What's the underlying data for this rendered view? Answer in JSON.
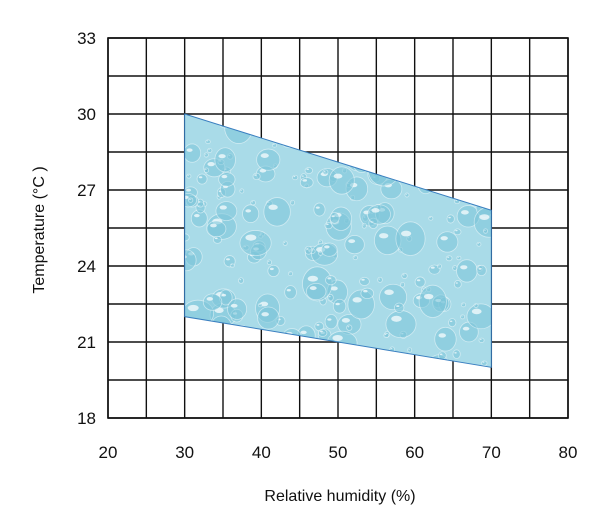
{
  "chart_data": {
    "type": "area",
    "title": "",
    "xlabel": "Relative humidity (%)",
    "ylabel": "Temperature (°C )",
    "xlim": [
      20,
      80
    ],
    "ylim": [
      18,
      33
    ],
    "x_ticks": [
      20,
      30,
      40,
      50,
      60,
      70,
      80
    ],
    "y_ticks": [
      18,
      21,
      24,
      27,
      30,
      33
    ],
    "x_tick_labels": [
      "20",
      "30",
      "40",
      "50",
      "60",
      "70",
      "80"
    ],
    "y_tick_labels": [
      "18",
      "21",
      "24",
      "27",
      "30",
      "33"
    ],
    "grid": true,
    "grid_x_step": 5,
    "grid_y_step": 1.5,
    "series": [
      {
        "polygon": [
          {
            "x": 30,
            "y": 30
          },
          {
            "x": 70,
            "y": 26.2
          },
          {
            "x": 70,
            "y": 20
          },
          {
            "x": 30,
            "y": 22
          }
        ],
        "fill": "#a9dbe8",
        "fill_texture": "water-droplets",
        "stroke": "#3a7fc0"
      }
    ],
    "colors": {
      "region_fill": "#a9dbe8",
      "region_stroke": "#3a7fc0",
      "droplet": "#7cc4d8",
      "grid": "#111111"
    }
  }
}
